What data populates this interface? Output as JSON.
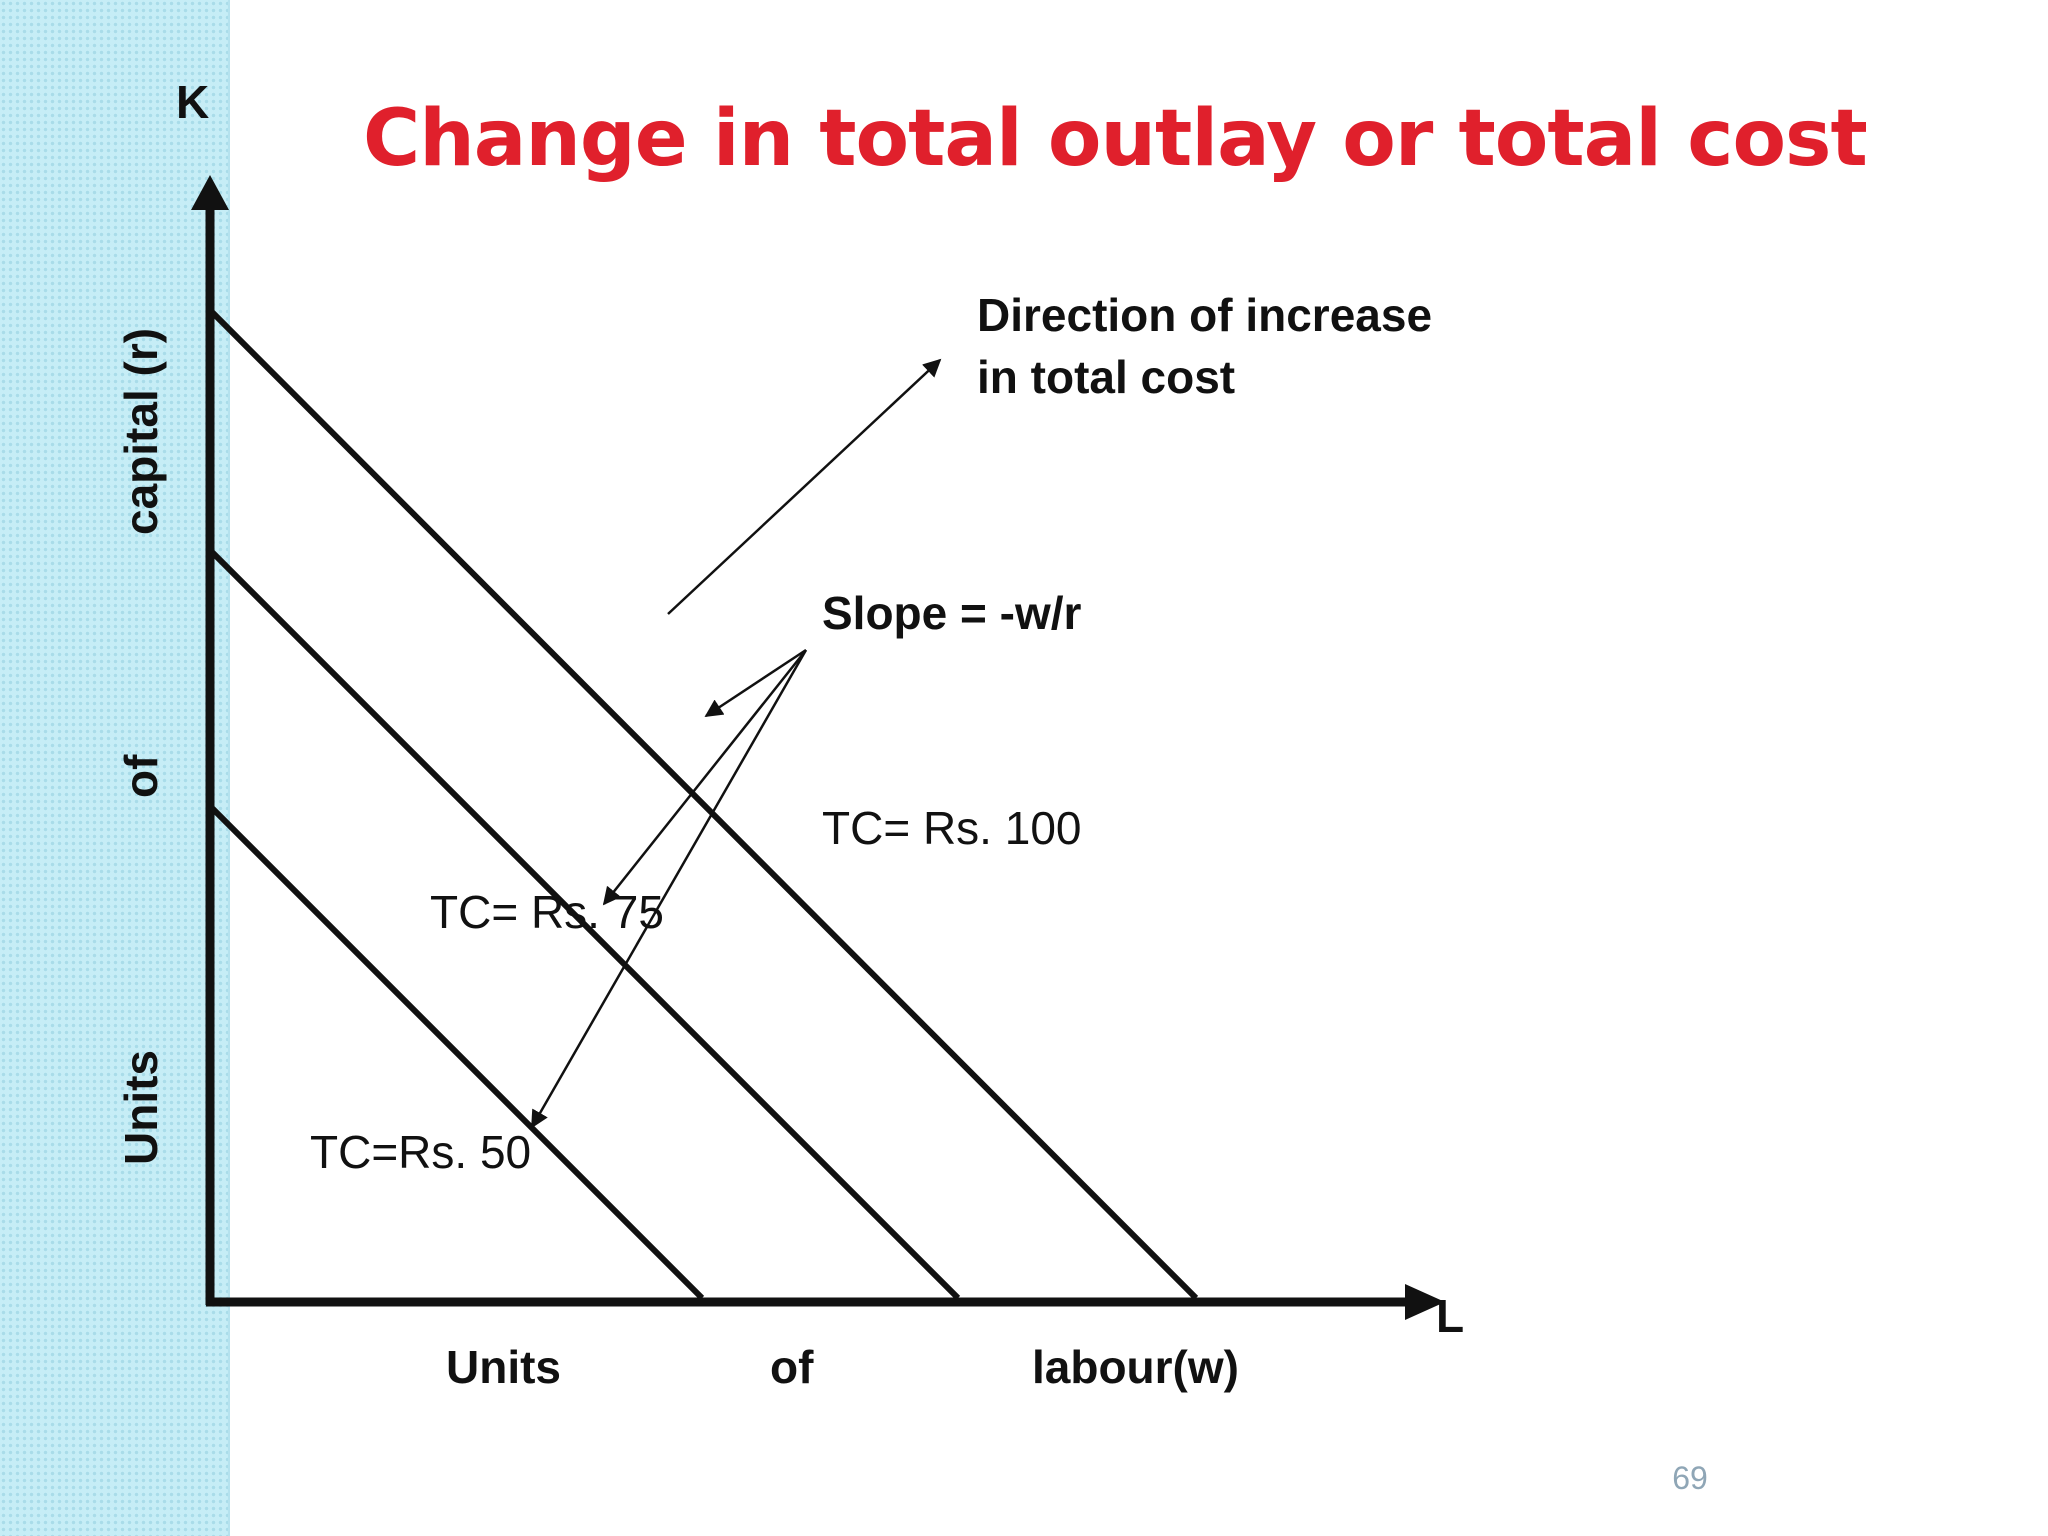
{
  "slide": {
    "title": "Change in total outlay or total cost",
    "page_number": "69",
    "accent_color": "#e0202c",
    "side_strip_color": "#c6edf6"
  },
  "diagram": {
    "y_axis": {
      "symbol": "K",
      "label_words": [
        "Units",
        "of",
        "capital (r)"
      ]
    },
    "x_axis": {
      "symbol": "L",
      "label_words": [
        "Units",
        "of",
        "labour(w)"
      ]
    },
    "isocost_lines": [
      {
        "label": "TC=Rs. 50"
      },
      {
        "label": "TC= Rs. 75"
      },
      {
        "label": "TC= Rs. 100"
      }
    ],
    "annotations": {
      "direction_line1": "Direction of increase",
      "direction_line2": "in total cost",
      "slope": "Slope = -w/r"
    }
  }
}
